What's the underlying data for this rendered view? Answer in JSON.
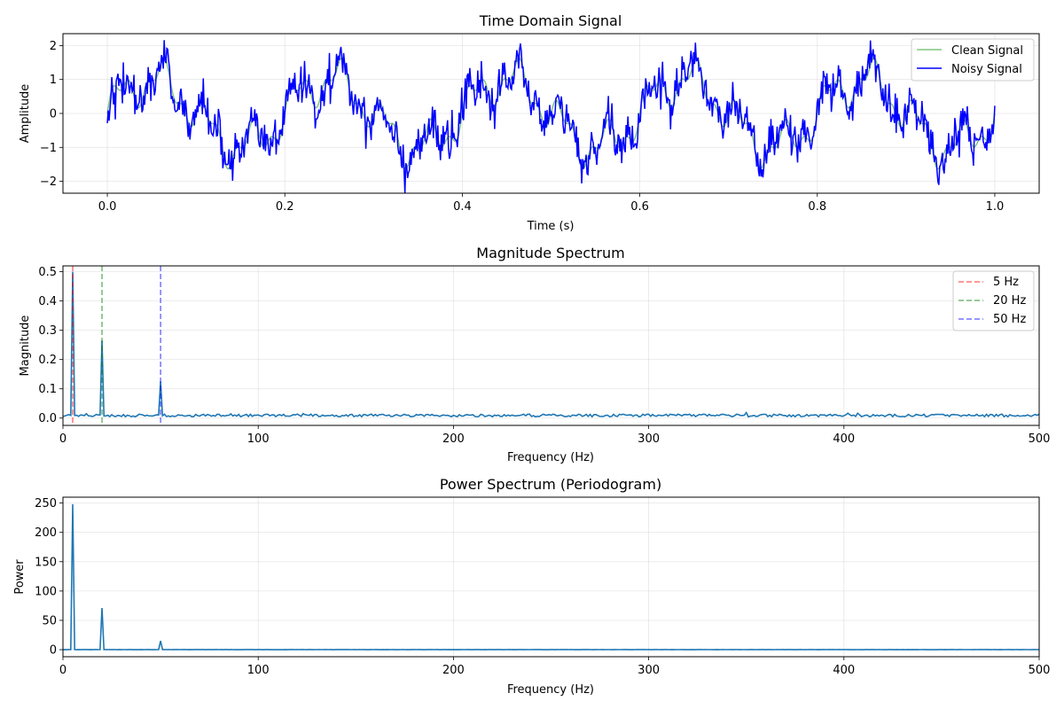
{
  "chart_data": [
    {
      "type": "line",
      "title": "Time Domain Signal",
      "xlabel": "Time (s)",
      "ylabel": "Amplitude",
      "xlim": [
        -0.05,
        1.05
      ],
      "ylim": [
        -2.35,
        2.35
      ],
      "xticks": [
        0.0,
        0.2,
        0.4,
        0.6,
        0.8,
        1.0
      ],
      "xtick_labels": [
        "0.0",
        "0.2",
        "0.4",
        "0.6",
        "0.8",
        "1.0"
      ],
      "yticks": [
        -2,
        -1,
        0,
        1,
        2
      ],
      "ytick_labels": [
        "−2",
        "−1",
        "0",
        "1",
        "2"
      ],
      "grid": true,
      "legend": "top-right",
      "series": [
        {
          "name": "Clean Signal",
          "color": "#2ca02c",
          "alpha": 0.6,
          "formula": "sin(2*pi*5*t) + 0.5*sin(2*pi*20*t) + 0.25*sin(2*pi*50*t)",
          "x_range": [
            0,
            1
          ],
          "samples": 1000
        },
        {
          "name": "Noisy Signal",
          "color": "#0000ff",
          "base": "Clean Signal",
          "noise_std": 0.3,
          "x_range": [
            0,
            1
          ],
          "samples": 1000
        }
      ]
    },
    {
      "type": "line",
      "title": "Magnitude Spectrum",
      "xlabel": "Frequency (Hz)",
      "ylabel": "Magnitude",
      "xlim": [
        0,
        500
      ],
      "ylim": [
        -0.025,
        0.52
      ],
      "xticks": [
        0,
        100,
        200,
        300,
        400,
        500
      ],
      "xtick_labels": [
        "0",
        "100",
        "200",
        "300",
        "400",
        "500"
      ],
      "yticks": [
        0.0,
        0.1,
        0.2,
        0.3,
        0.4,
        0.5
      ],
      "ytick_labels": [
        "0.0",
        "0.1",
        "0.2",
        "0.3",
        "0.4",
        "0.5"
      ],
      "grid": true,
      "legend": "top-right",
      "line_color": "#1f77b4",
      "peaks": [
        {
          "x": 5,
          "y": 0.5
        },
        {
          "x": 20,
          "y": 0.265
        },
        {
          "x": 50,
          "y": 0.125
        }
      ],
      "noise_floor": 0.01,
      "vlines": [
        {
          "x": 5,
          "name": "5 Hz",
          "color": "#ff0000"
        },
        {
          "x": 20,
          "name": "20 Hz",
          "color": "#008000"
        },
        {
          "x": 50,
          "name": "50 Hz",
          "color": "#0000ff"
        }
      ]
    },
    {
      "type": "line",
      "title": "Power Spectrum (Periodogram)",
      "xlabel": "Frequency (Hz)",
      "ylabel": "Power",
      "xlim": [
        0,
        500
      ],
      "ylim": [
        -12,
        260
      ],
      "xticks": [
        0,
        100,
        200,
        300,
        400,
        500
      ],
      "xtick_labels": [
        "0",
        "100",
        "200",
        "300",
        "400",
        "500"
      ],
      "yticks": [
        0,
        50,
        100,
        150,
        200,
        250
      ],
      "ytick_labels": [
        "0",
        "50",
        "100",
        "150",
        "200",
        "250"
      ],
      "grid": true,
      "line_color": "#1f77b4",
      "peaks": [
        {
          "x": 5,
          "y": 248
        },
        {
          "x": 20,
          "y": 71
        },
        {
          "x": 50,
          "y": 15
        }
      ]
    }
  ]
}
